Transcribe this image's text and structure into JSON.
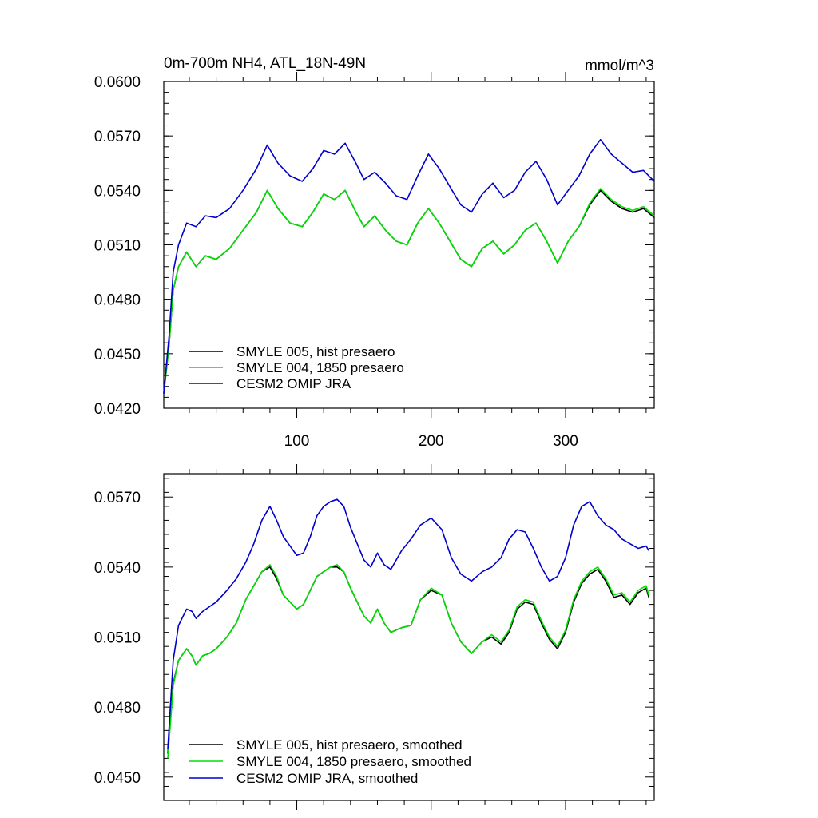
{
  "chart_data": [
    {
      "type": "line",
      "title": "0m-700m NH4, ATL_18N-49N",
      "units": "mmol/m^3",
      "xlabel": "",
      "ylabel": "",
      "xlim": [
        1,
        366
      ],
      "ylim": [
        0.042,
        0.06
      ],
      "x_ticks": [
        100,
        200,
        300
      ],
      "x_tick_labels": [
        "100",
        "200",
        "300"
      ],
      "y_ticks": [
        0.042,
        0.045,
        0.048,
        0.051,
        0.054,
        0.057,
        0.06
      ],
      "y_tick_labels": [
        "0.0420",
        "0.0450",
        "0.0480",
        "0.0510",
        "0.0540",
        "0.0570",
        "0.0600"
      ],
      "grid": false,
      "legend_position": "bottom-left",
      "series": [
        {
          "name": "SMYLE 005, hist presaero",
          "color": "#000000",
          "x": [
            1,
            5,
            8,
            12,
            18,
            25,
            32,
            40,
            50,
            60,
            70,
            78,
            86,
            95,
            104,
            112,
            120,
            128,
            136,
            144,
            150,
            158,
            166,
            174,
            182,
            190,
            198,
            206,
            214,
            222,
            230,
            238,
            246,
            254,
            262,
            270,
            278,
            286,
            294,
            302,
            310,
            318,
            326,
            334,
            342,
            350,
            358,
            366
          ],
          "y": [
            0.0428,
            0.0455,
            0.0485,
            0.0498,
            0.0506,
            0.0498,
            0.0504,
            0.0502,
            0.0508,
            0.0518,
            0.0528,
            0.054,
            0.053,
            0.0522,
            0.052,
            0.0528,
            0.0538,
            0.0535,
            0.054,
            0.0528,
            0.052,
            0.0526,
            0.0518,
            0.0512,
            0.051,
            0.0522,
            0.053,
            0.0522,
            0.0512,
            0.0502,
            0.0498,
            0.0508,
            0.0512,
            0.0505,
            0.051,
            0.0518,
            0.0522,
            0.0512,
            0.05,
            0.0512,
            0.052,
            0.0532,
            0.054,
            0.0534,
            0.053,
            0.0528,
            0.053,
            0.0525
          ]
        },
        {
          "name": "SMYLE 004, 1850 presaero",
          "color": "#00e000",
          "x": [
            1,
            5,
            8,
            12,
            18,
            25,
            32,
            40,
            50,
            60,
            70,
            78,
            86,
            95,
            104,
            112,
            120,
            128,
            136,
            144,
            150,
            158,
            166,
            174,
            182,
            190,
            198,
            206,
            214,
            222,
            230,
            238,
            246,
            254,
            262,
            270,
            278,
            286,
            294,
            302,
            310,
            318,
            326,
            334,
            342,
            350,
            358,
            366
          ],
          "y": [
            0.0428,
            0.0455,
            0.0485,
            0.0498,
            0.0506,
            0.0498,
            0.0504,
            0.0502,
            0.0508,
            0.0518,
            0.0528,
            0.054,
            0.053,
            0.0522,
            0.052,
            0.0528,
            0.0538,
            0.0535,
            0.054,
            0.0528,
            0.052,
            0.0526,
            0.0518,
            0.0512,
            0.051,
            0.0522,
            0.053,
            0.0522,
            0.0512,
            0.0502,
            0.0498,
            0.0508,
            0.0512,
            0.0505,
            0.051,
            0.0518,
            0.0522,
            0.0512,
            0.05,
            0.0512,
            0.052,
            0.0533,
            0.0541,
            0.0535,
            0.0531,
            0.0529,
            0.0531,
            0.0526
          ]
        },
        {
          "name": "CESM2 OMIP JRA",
          "color": "#0000cc",
          "x": [
            1,
            5,
            8,
            12,
            18,
            25,
            32,
            40,
            50,
            60,
            70,
            78,
            86,
            95,
            104,
            112,
            120,
            128,
            136,
            144,
            150,
            158,
            166,
            174,
            182,
            190,
            198,
            206,
            214,
            222,
            230,
            238,
            246,
            254,
            262,
            270,
            278,
            286,
            294,
            302,
            310,
            318,
            326,
            334,
            342,
            350,
            358,
            366
          ],
          "y": [
            0.0428,
            0.046,
            0.0495,
            0.051,
            0.0522,
            0.052,
            0.0526,
            0.0525,
            0.053,
            0.054,
            0.0552,
            0.0565,
            0.0555,
            0.0548,
            0.0545,
            0.0552,
            0.0562,
            0.056,
            0.0566,
            0.0555,
            0.0546,
            0.055,
            0.0544,
            0.0537,
            0.0535,
            0.0548,
            0.056,
            0.0552,
            0.0542,
            0.0532,
            0.0528,
            0.0538,
            0.0544,
            0.0536,
            0.054,
            0.055,
            0.0556,
            0.0546,
            0.0532,
            0.054,
            0.0548,
            0.056,
            0.0568,
            0.056,
            0.0555,
            0.055,
            0.0551,
            0.0545
          ]
        }
      ]
    },
    {
      "type": "line",
      "title": "",
      "xlabel": "",
      "ylabel": "",
      "xlim": [
        1,
        366
      ],
      "ylim": [
        0.044,
        0.058
      ],
      "x_ticks": [
        100,
        200,
        300
      ],
      "x_tick_labels": [],
      "y_ticks": [
        0.045,
        0.048,
        0.051,
        0.054,
        0.057
      ],
      "y_tick_labels": [
        "0.0450",
        "0.0480",
        "0.0510",
        "0.0540",
        "0.0570"
      ],
      "grid": false,
      "legend_position": "bottom-left",
      "series": [
        {
          "name": "SMYLE 005, hist presaero, smoothed",
          "color": "#000000",
          "x": [
            4,
            8,
            12,
            18,
            22,
            25,
            30,
            35,
            40,
            48,
            55,
            62,
            68,
            74,
            80,
            85,
            90,
            95,
            100,
            105,
            110,
            115,
            120,
            125,
            130,
            135,
            140,
            145,
            150,
            155,
            160,
            165,
            170,
            178,
            185,
            192,
            200,
            208,
            215,
            222,
            230,
            238,
            245,
            252,
            258,
            264,
            270,
            276,
            282,
            288,
            294,
            300,
            306,
            312,
            318,
            324,
            330,
            336,
            342,
            348,
            354,
            360,
            362
          ],
          "y": [
            0.046,
            0.049,
            0.05,
            0.0505,
            0.0502,
            0.0498,
            0.0502,
            0.0503,
            0.0505,
            0.051,
            0.0516,
            0.0526,
            0.0532,
            0.0538,
            0.054,
            0.0535,
            0.0528,
            0.0525,
            0.0522,
            0.0524,
            0.053,
            0.0536,
            0.0538,
            0.054,
            0.054,
            0.0538,
            0.0531,
            0.0525,
            0.0519,
            0.0516,
            0.0522,
            0.0516,
            0.0512,
            0.0514,
            0.0515,
            0.0526,
            0.053,
            0.0528,
            0.0516,
            0.0508,
            0.0503,
            0.0508,
            0.051,
            0.0507,
            0.0512,
            0.0522,
            0.0525,
            0.0524,
            0.0516,
            0.0509,
            0.0505,
            0.0512,
            0.0525,
            0.0533,
            0.0537,
            0.0539,
            0.0534,
            0.0527,
            0.0528,
            0.0524,
            0.0529,
            0.0531,
            0.0527
          ]
        },
        {
          "name": "SMYLE 004, 1850 presaero, smoothed",
          "color": "#00e000",
          "x": [
            4,
            8,
            12,
            18,
            22,
            25,
            30,
            35,
            40,
            48,
            55,
            62,
            68,
            74,
            80,
            85,
            90,
            95,
            100,
            105,
            110,
            115,
            120,
            125,
            130,
            135,
            140,
            145,
            150,
            155,
            160,
            165,
            170,
            178,
            185,
            192,
            200,
            208,
            215,
            222,
            230,
            238,
            245,
            252,
            258,
            264,
            270,
            276,
            282,
            288,
            294,
            300,
            306,
            312,
            318,
            324,
            330,
            336,
            342,
            348,
            354,
            360,
            362
          ],
          "y": [
            0.0458,
            0.0489,
            0.05,
            0.0505,
            0.0502,
            0.0498,
            0.0502,
            0.0503,
            0.0505,
            0.051,
            0.0516,
            0.0526,
            0.0532,
            0.0538,
            0.0541,
            0.0536,
            0.0528,
            0.0525,
            0.0522,
            0.0524,
            0.053,
            0.0536,
            0.0538,
            0.054,
            0.0541,
            0.0538,
            0.0531,
            0.0525,
            0.0519,
            0.0516,
            0.0522,
            0.0516,
            0.0512,
            0.0514,
            0.0515,
            0.0526,
            0.0531,
            0.0528,
            0.0516,
            0.0508,
            0.0503,
            0.0508,
            0.0511,
            0.0508,
            0.0513,
            0.0523,
            0.0526,
            0.0525,
            0.0517,
            0.051,
            0.0506,
            0.0513,
            0.0526,
            0.0534,
            0.0538,
            0.054,
            0.0535,
            0.0528,
            0.0529,
            0.0525,
            0.053,
            0.0532,
            0.0528
          ]
        },
        {
          "name": "CESM2 OMIP JRA, smoothed",
          "color": "#0000cc",
          "x": [
            4,
            8,
            12,
            18,
            22,
            25,
            30,
            35,
            40,
            48,
            55,
            62,
            68,
            74,
            80,
            85,
            90,
            95,
            100,
            105,
            110,
            115,
            120,
            125,
            130,
            135,
            140,
            145,
            150,
            155,
            160,
            165,
            170,
            178,
            185,
            192,
            200,
            208,
            215,
            222,
            230,
            238,
            245,
            252,
            258,
            264,
            270,
            276,
            282,
            288,
            294,
            300,
            306,
            312,
            318,
            324,
            330,
            336,
            342,
            348,
            354,
            360,
            362
          ],
          "y": [
            0.0462,
            0.05,
            0.0515,
            0.0522,
            0.0521,
            0.0518,
            0.0521,
            0.0523,
            0.0525,
            0.053,
            0.0535,
            0.0542,
            0.055,
            0.056,
            0.0566,
            0.056,
            0.0553,
            0.0549,
            0.0545,
            0.0546,
            0.0553,
            0.0562,
            0.0566,
            0.0568,
            0.0569,
            0.0566,
            0.0557,
            0.055,
            0.0543,
            0.054,
            0.0546,
            0.0541,
            0.0539,
            0.0547,
            0.0552,
            0.0558,
            0.0561,
            0.0556,
            0.0544,
            0.0537,
            0.0534,
            0.0538,
            0.054,
            0.0544,
            0.0552,
            0.0556,
            0.0555,
            0.0548,
            0.054,
            0.0534,
            0.0536,
            0.0544,
            0.0558,
            0.0566,
            0.0568,
            0.0562,
            0.0558,
            0.0556,
            0.0552,
            0.055,
            0.0548,
            0.0549,
            0.0547
          ]
        }
      ]
    }
  ]
}
